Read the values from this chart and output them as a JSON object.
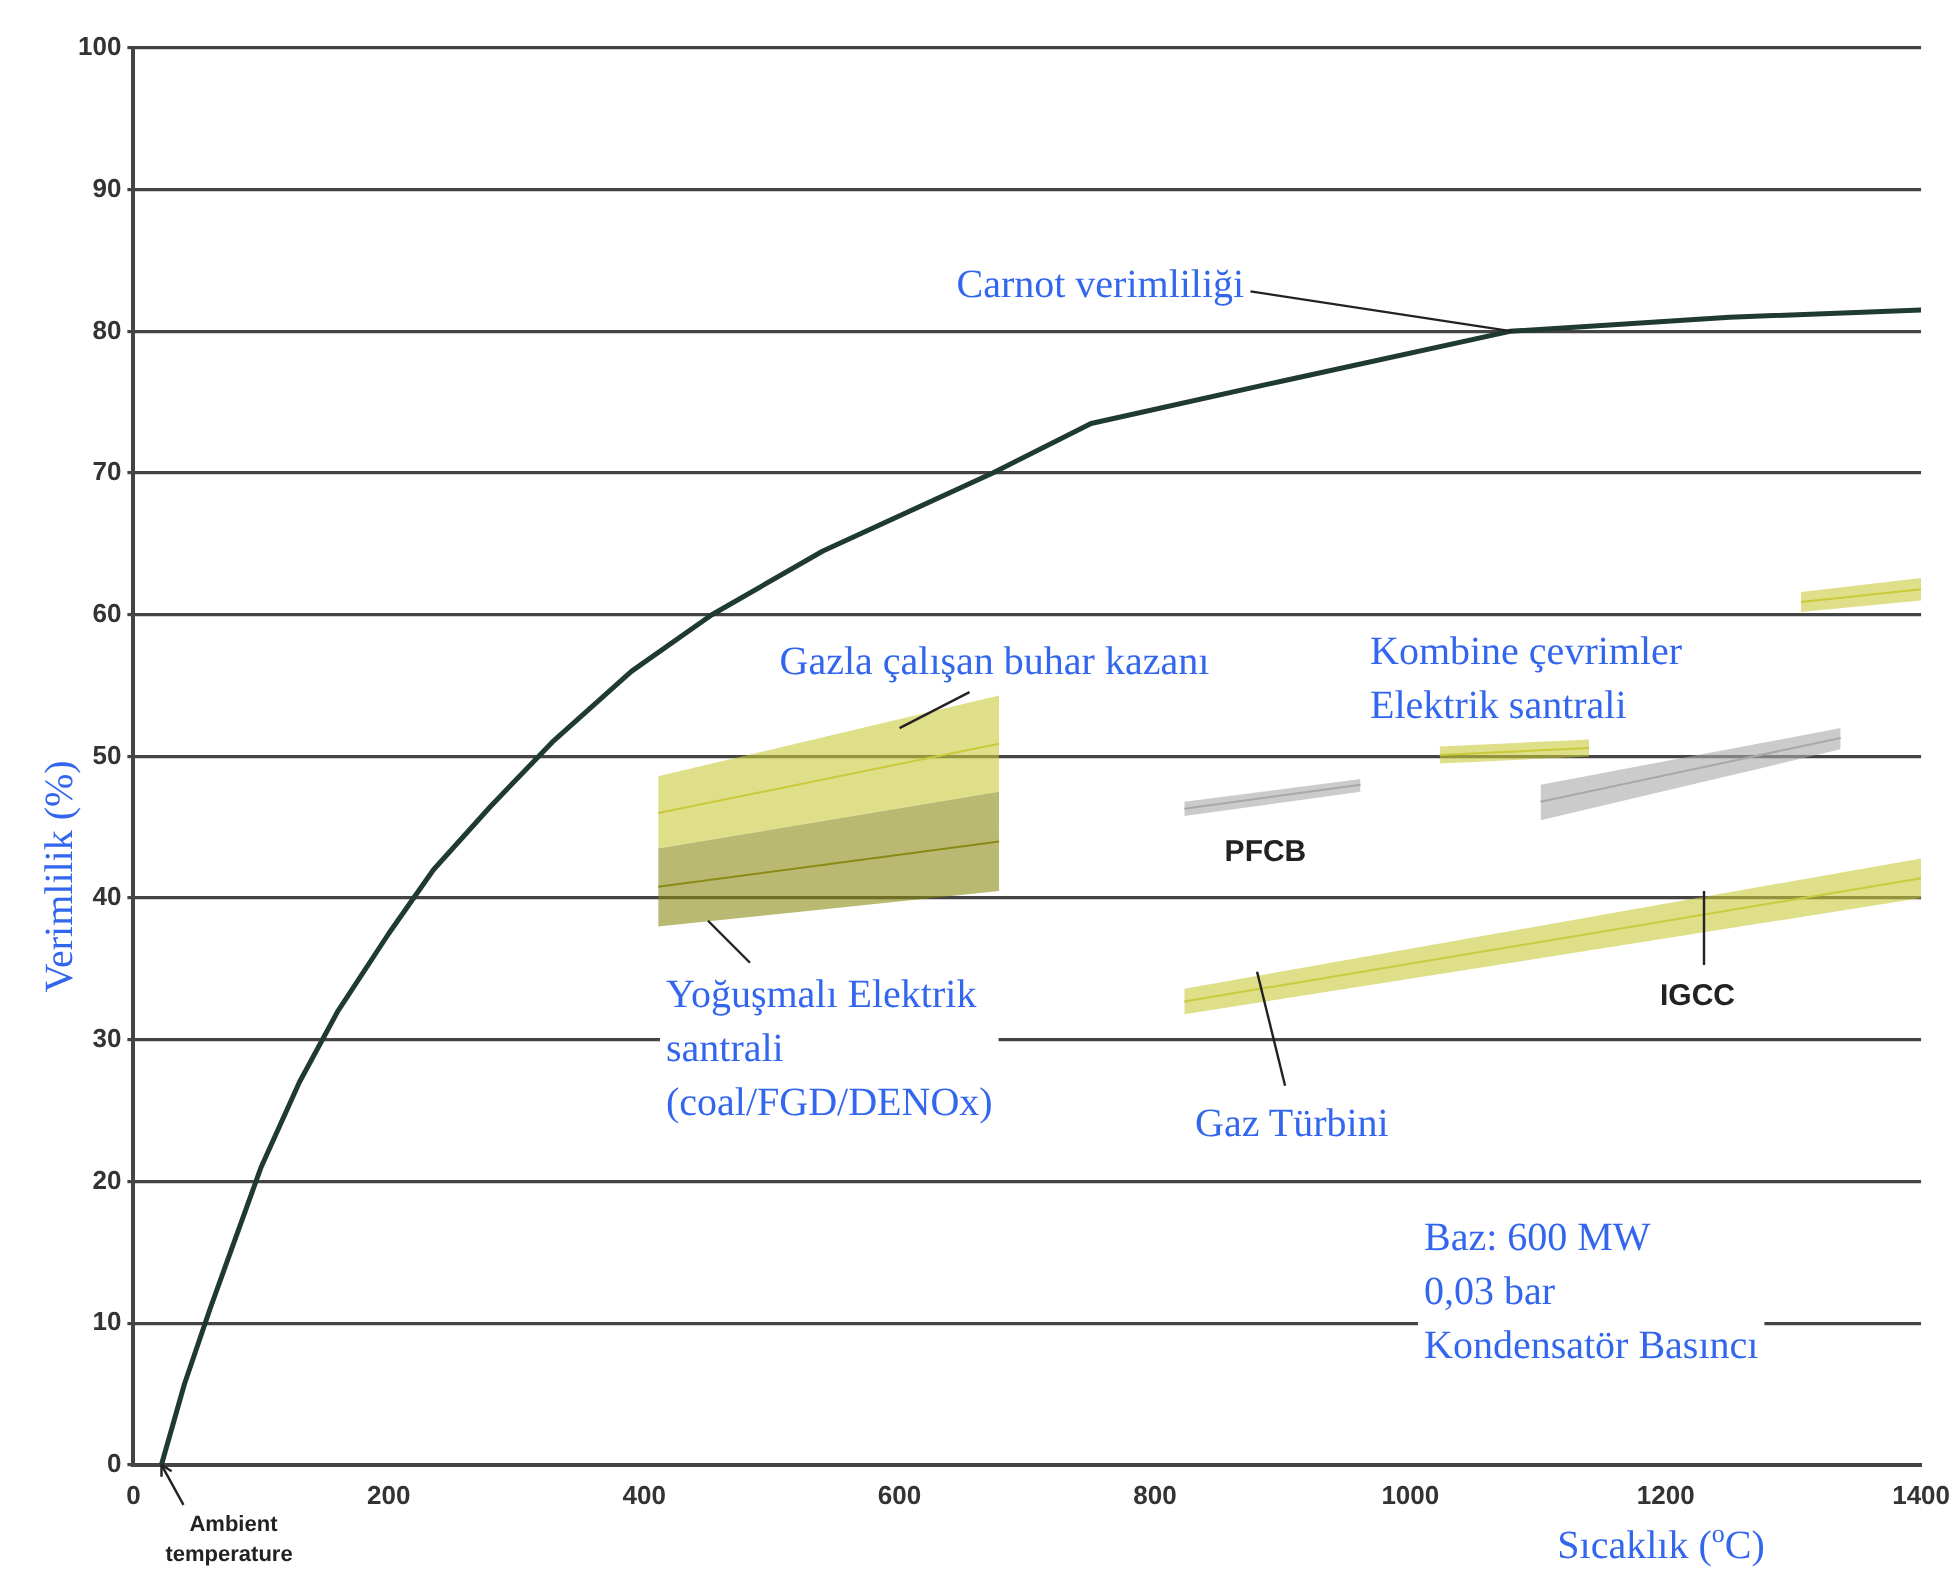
{
  "chart_data": {
    "type": "line",
    "xlabel": "Sıcaklık ($^{o}$C)",
    "ylabel": "Verimlilik (%)",
    "xlim": [
      0,
      1400
    ],
    "xticks": [
      0,
      200,
      400,
      600,
      800,
      1000,
      1200,
      1400
    ],
    "ylim": [
      0,
      100
    ],
    "yticks": [
      0,
      10,
      20,
      30,
      40,
      50,
      60,
      70,
      80,
      90,
      100
    ],
    "grid": "y",
    "legend": false,
    "marker": "none",
    "line_style": "solid",
    "series": [
      {
        "color": "#1f3a2e",
        "x": [
          22,
          40,
          60,
          80,
          100,
          130,
          160,
          200,
          235,
          280,
          328,
          390,
          453,
          540,
          673,
          750,
          900,
          1078,
          1250,
          1400
        ],
        "values": [
          0,
          5.7,
          11,
          16,
          21,
          27,
          32,
          37.5,
          42,
          46.5,
          51,
          56,
          60,
          64.5,
          70,
          73.5,
          76.5,
          80,
          81,
          81.5
        ]
      },
      {
        "color": "#8a8a14",
        "x": [
          411,
          678
        ],
        "values": [
          40.8,
          44
        ],
        "lower": [
          38,
          40.5
        ],
        "upper": [
          43.5,
          47.5
        ]
      },
      {
        "color": "#c9c93a",
        "x": [
          411,
          678
        ],
        "values": [
          46,
          50.9
        ],
        "lower": [
          43.5,
          47.5
        ],
        "upper": [
          48.6,
          54.3
        ]
      },
      {
        "color": "#a8a8a8",
        "x": [
          823,
          961
        ],
        "values": [
          46.3,
          48
        ],
        "lower": [
          45.8,
          47.5
        ],
        "upper": [
          46.8,
          48.4
        ]
      },
      {
        "color": "#a9a9a9",
        "x": [
          1102,
          1337
        ],
        "values": [
          46.8,
          51.3
        ],
        "lower": [
          45.5,
          50.5
        ],
        "upper": [
          48,
          52
        ]
      },
      {
        "color": "#c9c93a",
        "x": [
          1023,
          1140
        ],
        "values": [
          50.1,
          50.6
        ],
        "lower": [
          49.5,
          50
        ],
        "upper": [
          50.7,
          51.2
        ]
      },
      {
        "color": "#c9c93a",
        "x": [
          1306,
          1400
        ],
        "values": [
          60.9,
          61.8
        ],
        "lower": [
          60.2,
          61
        ],
        "upper": [
          61.6,
          62.6
        ]
      },
      {
        "color": "#caca3c",
        "x": [
          823,
          1400
        ],
        "values": [
          32.7,
          41.4
        ],
        "lower": [
          31.8,
          40
        ],
        "upper": [
          33.6,
          42.8
        ]
      }
    ],
    "annotations": [
      {
        "text": "Carnot verimliliği",
        "x": 1080,
        "y": 80
      },
      {
        "text": "Gazla çalışan buhar kazanı",
        "x": 600,
        "y": 52
      },
      "Kombine çevrimler\nElektrik santrali",
      {
        "text": "PFCB",
        "x": 900,
        "y": 47
      },
      {
        "text": "Yoğuşmalı Elektrik\nsantrali\n(coal/FGD/DENOx)",
        "x": 450,
        "y": 38.4
      },
      {
        "text": "Gaz Türbini",
        "x": 880,
        "y": 34.8
      },
      {
        "text": "IGCC",
        "x": 1230,
        "y": 40.5
      },
      "Baz: 600 MW\n0,03 bar\nKondensatör Basıncı",
      {
        "text": "Ambient\ntemperature",
        "x": 22,
        "y": 0
      }
    ]
  }
}
